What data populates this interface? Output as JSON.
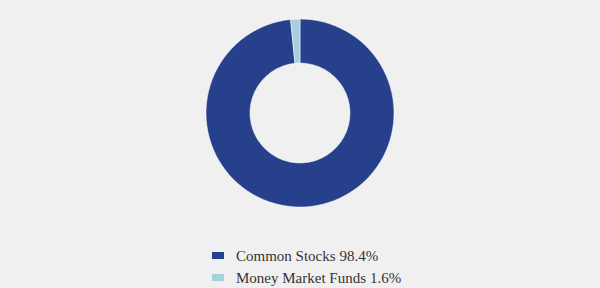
{
  "chart_data": {
    "type": "donut",
    "categories": [
      "Common Stocks",
      "Money Market Funds"
    ],
    "values": [
      98.4,
      1.6
    ],
    "value_labels": [
      "98.4%",
      "1.6%"
    ],
    "colors": [
      "#26408b",
      "#a7cfdd"
    ],
    "legend": "bottom"
  }
}
